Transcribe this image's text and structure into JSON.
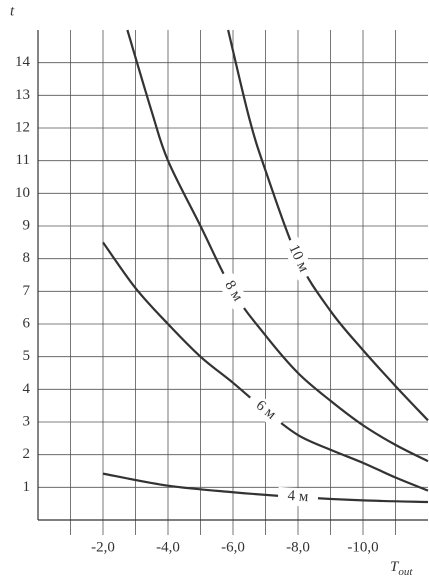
{
  "chart_data": {
    "type": "line",
    "ylabel": "t",
    "xlabel": {
      "main": "T",
      "sub": "out"
    },
    "xlim": [
      0,
      -12
    ],
    "ylim": [
      0,
      15
    ],
    "xticks": [
      {
        "value": -2,
        "label": "-2,0"
      },
      {
        "value": -4,
        "label": "-4,0"
      },
      {
        "value": -6,
        "label": "-6,0"
      },
      {
        "value": -8,
        "label": "-8,0"
      },
      {
        "value": -10,
        "label": "-10,0"
      }
    ],
    "xgrid": [
      -1,
      -2,
      -3,
      -4,
      -5,
      -6,
      -7,
      -8,
      -9,
      -10,
      -11
    ],
    "yticks": [
      1,
      2,
      3,
      4,
      5,
      6,
      7,
      8,
      9,
      10,
      11,
      12,
      13,
      14
    ],
    "grid": true,
    "color": "#333333",
    "series": [
      {
        "name": "4 м",
        "x": [
          -2,
          -4,
          -6,
          -8,
          -10,
          -12
        ],
        "values": [
          1.42,
          1.05,
          0.85,
          0.7,
          0.6,
          0.55
        ]
      },
      {
        "name": "6 м",
        "x": [
          -2,
          -3,
          -4,
          -5,
          -6,
          -7,
          -8,
          -9,
          -10,
          -11,
          -12
        ],
        "values": [
          8.5,
          7.1,
          6.0,
          5.0,
          4.2,
          3.35,
          2.6,
          2.15,
          1.75,
          1.3,
          0.9
        ]
      },
      {
        "name": "8 м",
        "x": [
          -2.75,
          -3.5,
          -4,
          -5,
          -6,
          -7,
          -8,
          -9,
          -10,
          -11,
          -12
        ],
        "values": [
          15,
          12.5,
          11.0,
          9.0,
          7.0,
          5.65,
          4.5,
          3.65,
          2.9,
          2.3,
          1.8
        ]
      },
      {
        "name": "10 м",
        "x": [
          -5.85,
          -6.5,
          -7,
          -8,
          -9,
          -10,
          -11,
          -12
        ],
        "values": [
          15,
          12.3,
          10.7,
          8.0,
          6.4,
          5.2,
          4.1,
          3.05
        ]
      }
    ]
  }
}
